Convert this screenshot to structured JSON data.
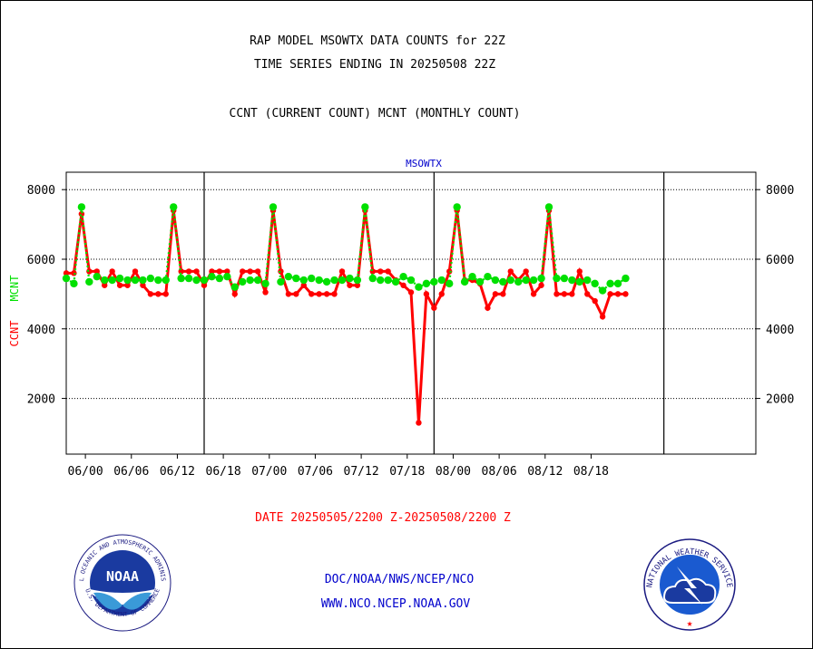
{
  "header": {
    "title_line1": "RAP MODEL MSOWTX DATA COUNTS for 22Z",
    "title_line2": "TIME SERIES ENDING IN 20250508 22Z",
    "subtitle": "CCNT (CURRENT COUNT) MCNT (MONTHLY COUNT)"
  },
  "footer": {
    "date_range": "DATE 20250505/2200 Z-20250508/2200 Z",
    "org_line": "DOC/NOAA/NWS/NCEP/NCO",
    "website": "WWW.NCO.NCEP.NOAA.GOV"
  },
  "logos": {
    "noaa_text": "NOAA",
    "noaa_ring_top": "NATIONAL OCEANIC AND ATMOSPHERIC ADMINISTRATION",
    "noaa_ring_bottom": "U.S. DEPARTMENT OF COMMERCE",
    "nws_ring_text": "NATIONAL WEATHER SERVICE"
  },
  "colors": {
    "ccnt": "#ff0000",
    "mcnt": "#00e000",
    "title_text": "#000000",
    "panel_title": "#0000cc",
    "date_text": "#ff0000",
    "footer_text": "#0000cc"
  },
  "chart_data": {
    "type": "line",
    "title": "MSOWTX",
    "ylabel_left_1": "CCNT",
    "ylabel_left_2": "MCNT",
    "ylim": [
      400,
      8500
    ],
    "yticks": [
      2000,
      4000,
      6000,
      8000
    ],
    "xlim": [
      0,
      90
    ],
    "xtick_labels": [
      "06/00",
      "06/06",
      "06/12",
      "06/18",
      "07/00",
      "07/06",
      "07/12",
      "07/18",
      "08/00",
      "08/06",
      "08/12",
      "08/18"
    ],
    "xtick_hours": [
      2.5,
      8.5,
      14.5,
      20.5,
      26.5,
      32.5,
      38.5,
      44.5,
      50.5,
      56.5,
      62.5,
      68.5
    ],
    "day_boundaries_hours": [
      18,
      48,
      78
    ],
    "grid": true,
    "series": [
      {
        "name": "CCNT",
        "values": [
          5600,
          5600,
          7300,
          5650,
          5650,
          5250,
          5650,
          5250,
          5250,
          5650,
          5250,
          5000,
          5000,
          5000,
          7400,
          5650,
          5650,
          5650,
          5250,
          5650,
          5650,
          5650,
          5000,
          5650,
          5650,
          5650,
          5050,
          7400,
          5650,
          5000,
          5000,
          5250,
          5000,
          5000,
          5000,
          5000,
          5650,
          5250,
          5250,
          7400,
          5650,
          5650,
          5650,
          5400,
          5250,
          5050,
          1300,
          5000,
          4600,
          5000,
          5650,
          7400,
          5400,
          5400,
          5300,
          4600,
          5000,
          5000,
          5650,
          5400,
          5650,
          5000,
          5250,
          7400,
          5000,
          5000,
          5000,
          5650,
          5000,
          4800,
          4350,
          5000,
          5000,
          5000
        ]
      },
      {
        "name": "MCNT",
        "values": [
          5450,
          5300,
          7500,
          5350,
          5500,
          5400,
          5400,
          5450,
          5400,
          5400,
          5400,
          5450,
          5400,
          5400,
          7500,
          5450,
          5450,
          5400,
          5400,
          5500,
          5450,
          5500,
          5200,
          5350,
          5400,
          5400,
          5300,
          7500,
          5350,
          5500,
          5450,
          5400,
          5450,
          5400,
          5350,
          5400,
          5400,
          5450,
          5400,
          7500,
          5450,
          5400,
          5400,
          5350,
          5500,
          5400,
          5200,
          5300,
          5350,
          5400,
          5300,
          7500,
          5350,
          5500,
          5350,
          5500,
          5400,
          5350,
          5400,
          5350,
          5400,
          5400,
          5450,
          7500,
          5450,
          5450,
          5400,
          5350,
          5400,
          5300,
          5100,
          5300,
          5300,
          5450
        ]
      }
    ]
  }
}
